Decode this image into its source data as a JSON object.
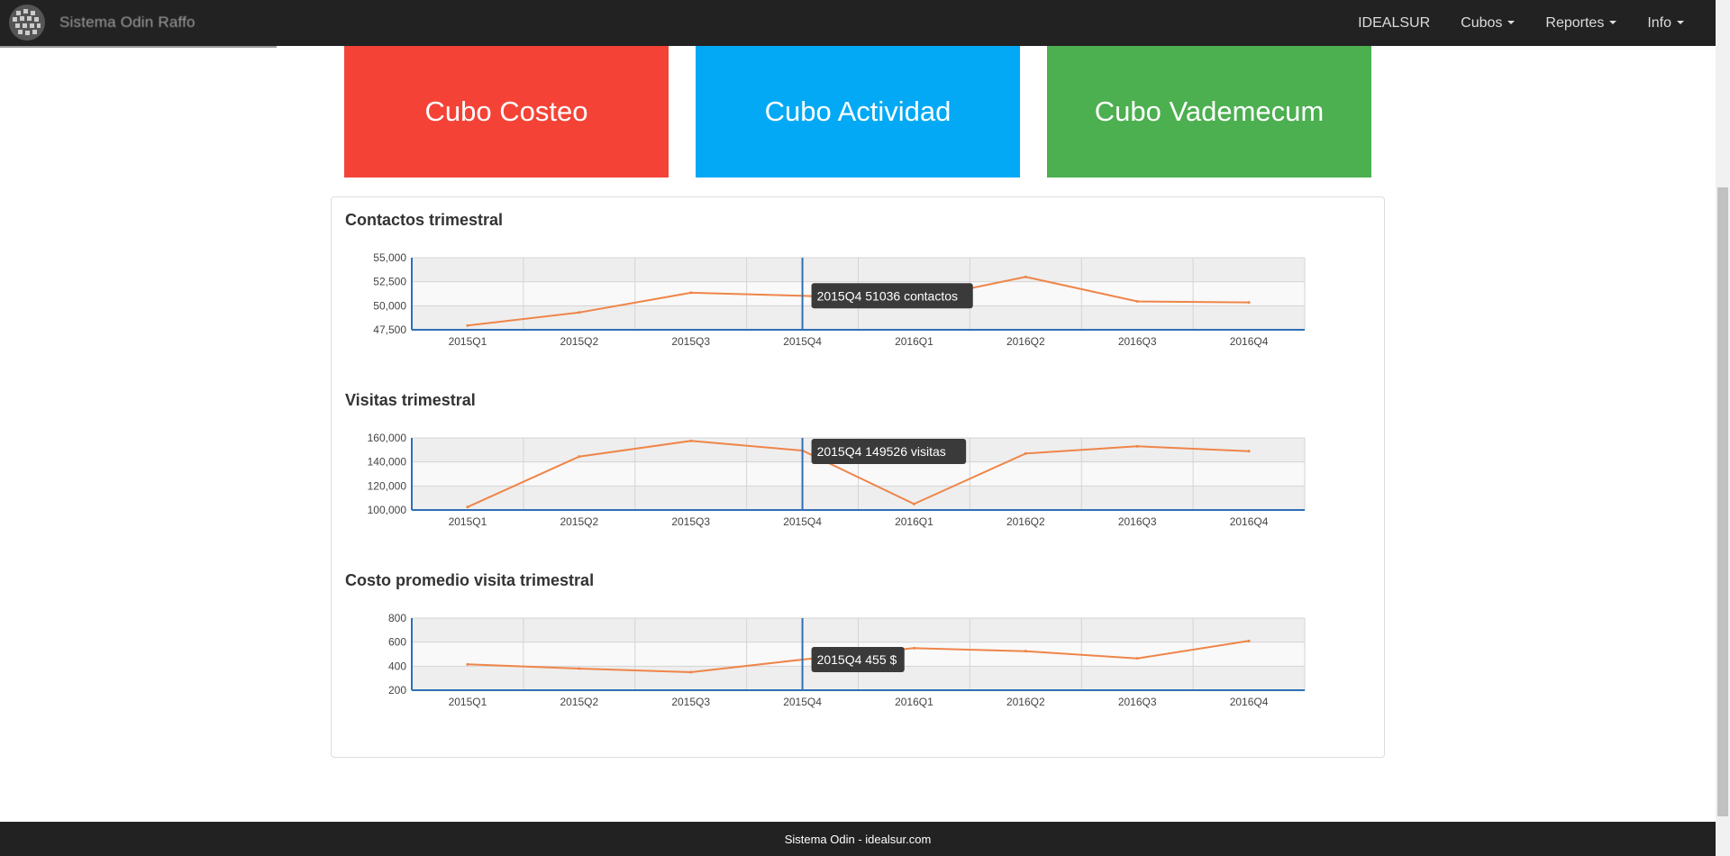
{
  "app": {
    "title": "Sistema Odin Raffo"
  },
  "nav": {
    "items": [
      {
        "label": "IDEALSUR",
        "dropdown": false
      },
      {
        "label": "Cubos",
        "dropdown": true
      },
      {
        "label": "Reportes",
        "dropdown": true
      },
      {
        "label": "Info",
        "dropdown": true
      }
    ]
  },
  "tiles": [
    {
      "label": "Cubo Costeo",
      "color": "#f44336"
    },
    {
      "label": "Cubo Actividad",
      "color": "#03a9f4"
    },
    {
      "label": "Cubo Vademecum",
      "color": "#4caf50"
    }
  ],
  "chart_data": [
    {
      "type": "line",
      "title": "Contactos trimestral",
      "categories": [
        "2015Q1",
        "2015Q2",
        "2015Q3",
        "2015Q4",
        "2016Q1",
        "2016Q2",
        "2016Q3",
        "2016Q4"
      ],
      "series": [
        {
          "values": [
            47950,
            49300,
            51350,
            51036,
            50600,
            53000,
            50450,
            50350
          ],
          "color": "#ef8549"
        }
      ],
      "ylim": [
        47500,
        55000
      ],
      "yticks": [
        "55,000",
        "52,500",
        "50,000",
        "47,500"
      ],
      "grid": true,
      "hover_category": "2015Q4",
      "tooltip": "2015Q4 51036 contactos"
    },
    {
      "type": "line",
      "title": "Visitas trimestral",
      "categories": [
        "2015Q1",
        "2015Q2",
        "2015Q3",
        "2015Q4",
        "2016Q1",
        "2016Q2",
        "2016Q3",
        "2016Q4"
      ],
      "series": [
        {
          "values": [
            102500,
            144500,
            157500,
            149526,
            105000,
            147000,
            153000,
            149000
          ],
          "color": "#ef8549"
        }
      ],
      "ylim": [
        100000,
        160000
      ],
      "yticks": [
        "160,000",
        "140,000",
        "120,000",
        "100,000"
      ],
      "grid": true,
      "hover_category": "2015Q4",
      "tooltip": "2015Q4 149526 visitas"
    },
    {
      "type": "line",
      "title": "Costo promedio visita trimestral",
      "categories": [
        "2015Q1",
        "2015Q2",
        "2015Q3",
        "2015Q4",
        "2016Q1",
        "2016Q2",
        "2016Q3",
        "2016Q4"
      ],
      "series": [
        {
          "values": [
            415,
            380,
            350,
            455,
            550,
            525,
            465,
            610
          ],
          "color": "#ef8549"
        }
      ],
      "ylim": [
        200,
        800
      ],
      "yticks": [
        "800",
        "600",
        "400",
        "200"
      ],
      "grid": true,
      "hover_category": "2015Q4",
      "tooltip": "2015Q4 455 $"
    }
  ],
  "footer": {
    "text": "Sistema Odin - idealsur.com"
  }
}
